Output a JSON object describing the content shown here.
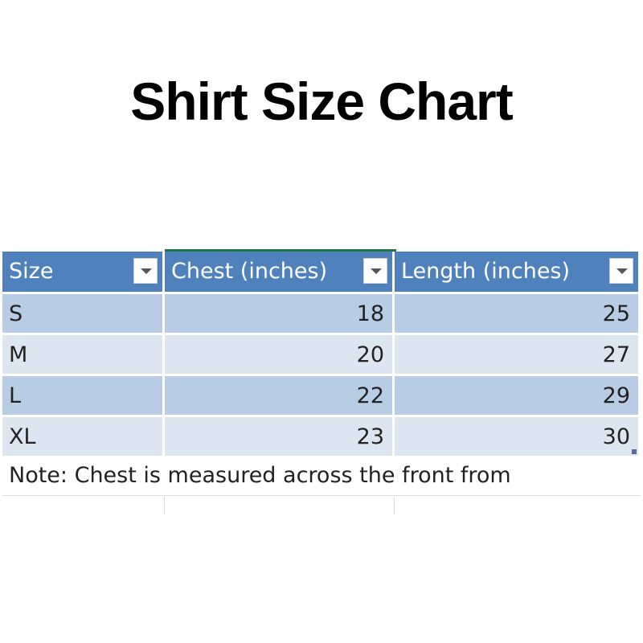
{
  "title": "Shirt Size Chart",
  "table": {
    "headers": [
      "Size",
      "Chest (inches)",
      "Length (inches)"
    ],
    "rows": [
      {
        "size": "S",
        "chest": "18",
        "length": "25"
      },
      {
        "size": "M",
        "chest": "20",
        "length": "27"
      },
      {
        "size": "L",
        "chest": "22",
        "length": "29"
      },
      {
        "size": "XL",
        "chest": "23",
        "length": "30"
      }
    ],
    "note": "Note: Chest is measured across the front from"
  },
  "colors": {
    "header": "#4f81bd",
    "row_band_dark": "#b8cce4",
    "row_band_light": "#dce6f1",
    "active_column": "#217346"
  }
}
